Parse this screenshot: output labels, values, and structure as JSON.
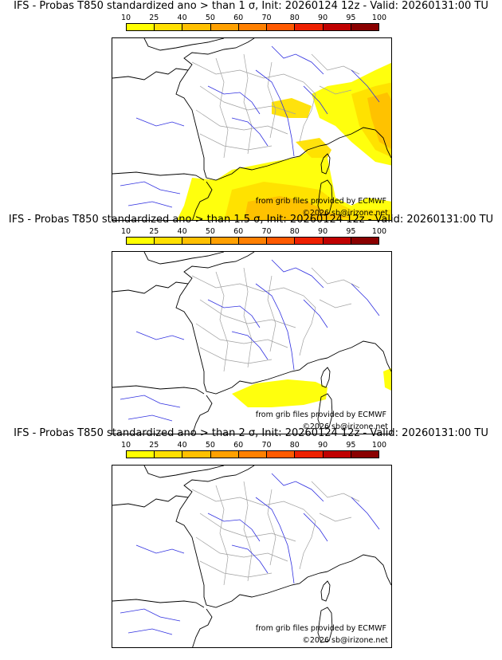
{
  "panels": [
    {
      "title": "IFS - Probas T850  standardized ano > than 1 σ, Init: 20260124 12z - Valid: 20260131:00 TU",
      "anomaly_threshold_sigma": 1,
      "coverage_regions": [
        "Alps / northern Italy (strong)",
        "Ligurian Sea & Corsica",
        "western Mediterranean / Spain coast",
        "northeast France (weak)"
      ]
    },
    {
      "title": "IFS - Probas T850  standardized ano > than 1.5 σ, Init: 20260124 12z - Valid: 20260131:00 TU",
      "anomaly_threshold_sigma": 1.5,
      "coverage_regions": [
        "Gulf of Lion / Balearic Sea",
        "eastern edge near Italy"
      ]
    },
    {
      "title": "IFS - Probas T850  standardized ano > than 2 σ, Init: 20260124 12z - Valid: 20260131:00 TU",
      "anomaly_threshold_sigma": 2,
      "coverage_regions": []
    }
  ],
  "colorbar": {
    "ticks": [
      "10",
      "25",
      "40",
      "50",
      "60",
      "70",
      "80",
      "90",
      "95",
      "100"
    ],
    "colors": [
      "#ffff00",
      "#ffe000",
      "#ffc000",
      "#ffa000",
      "#ff8000",
      "#ff5a00",
      "#ee2000",
      "#c00000",
      "#8a0000"
    ]
  },
  "credits": {
    "source": "from grib files provided by ECMWF",
    "copyright": "©2026 sb@irizone.net"
  },
  "style": {
    "coast_color": "#000000",
    "river_color": "#3030e0",
    "border_color": "#a0a0a0"
  }
}
